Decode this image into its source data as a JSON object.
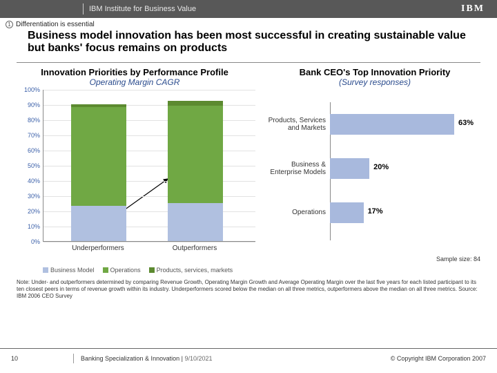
{
  "header": {
    "institute": "IBM Institute for Business Value",
    "logo": "IBM"
  },
  "eyebrow": {
    "num": "1",
    "text": "Differentiation is essential"
  },
  "title": "Business model innovation has been most successful in creating sustainable value but banks' focus remains on products",
  "left_chart": {
    "type": "stacked-bar",
    "title": "Innovation Priorities by Performance Profile",
    "subtitle": "Operating Margin CAGR",
    "ylim": [
      0,
      100
    ],
    "ytick_step": 10,
    "ytick_suffix": "%",
    "colors": {
      "business_model": "#b0c0e0",
      "operations": "#70a844",
      "products": "#5c8a30"
    },
    "categories": [
      "Underperformers",
      "Outperformers"
    ],
    "series": [
      {
        "name": "Business Model",
        "values": [
          23,
          25
        ]
      },
      {
        "name": "Operations",
        "values": [
          65,
          64
        ]
      },
      {
        "name": "Products, services, markets",
        "values": [
          2,
          3
        ]
      }
    ],
    "legend": [
      "Business Model",
      "Operations",
      "Products, services, markets"
    ],
    "title_fontsize": 13,
    "label_color": "#3a5fa8"
  },
  "right_chart": {
    "type": "horizontal-bar",
    "title": "Bank CEO's Top Innovation Priority",
    "subtitle": "(Survey responses)",
    "xmax": 70,
    "bar_color": "#a8b9dd",
    "rows": [
      {
        "label": "Products, Services and Markets",
        "value": 63,
        "display": "63%"
      },
      {
        "label": "Business & Enterprise Models",
        "value": 20,
        "display": "20%"
      },
      {
        "label": "Operations",
        "value": 17,
        "display": "17%"
      }
    ],
    "sample_label": "Sample size: 84"
  },
  "note": "Note: Under- and outperformers determined by comparing Revenue Growth, Operating Margin Growth and Average Operating Margin over the last five years for each listed participant to its ten closest peers in terms of revenue growth within its industry. Underperformers scored below the median on all three metrics, outperformers above the median on all three metrics. Source: IBM 2006 CEO Survey",
  "footer": {
    "page": "10",
    "center": "Banking Specialization & Innovation",
    "date": "9/10/2021",
    "copyright": "© Copyright IBM Corporation 2007"
  }
}
